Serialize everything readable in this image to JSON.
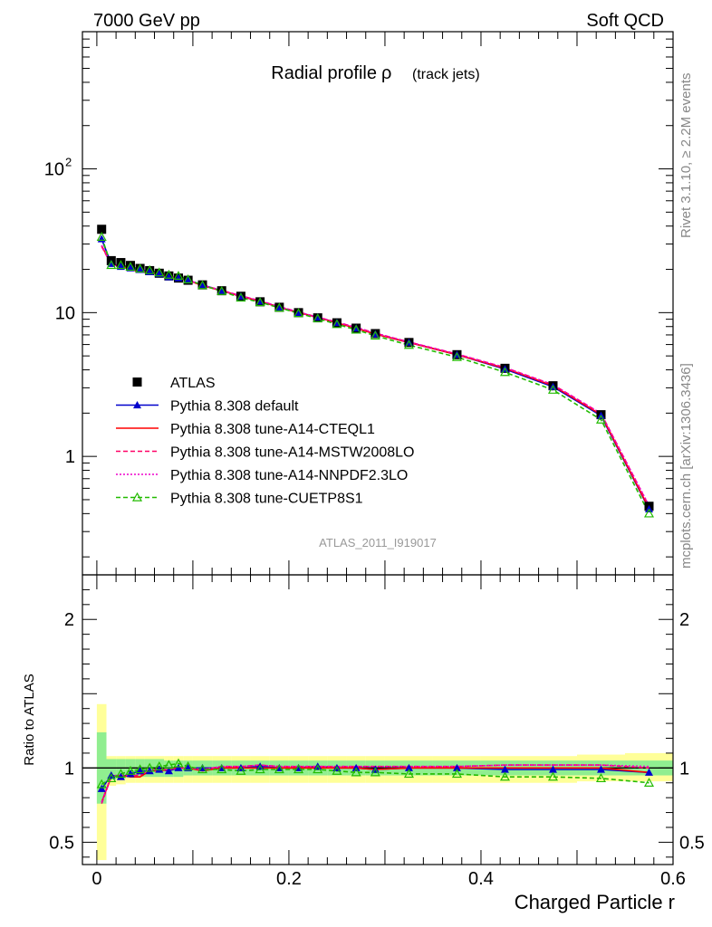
{
  "header": {
    "left": "7000 GeV pp",
    "right": "Soft QCD"
  },
  "side_text": {
    "rivet": "Rivet 3.1.10, ≥ 2.2M events",
    "mcplots": "mcplots.cern.ch [arXiv:1306.3436]"
  },
  "plot_title": {
    "main": "Radial profile",
    "symbol": "ρ",
    "suffix": "(track jets)"
  },
  "analysis_id": "ATLAS_2011_I919017",
  "chart_data": [
    {
      "type": "line",
      "title": "Radial profile ρ (track jets)",
      "xlabel": "",
      "ylabel": "",
      "yscale": "log",
      "xlim": [
        -0.015,
        0.6
      ],
      "ylim": [
        0.15,
        900
      ],
      "yticks_labeled": [
        {
          "v": 1,
          "label": "1"
        },
        {
          "v": 10,
          "label": "10"
        },
        {
          "v": 100,
          "label": "10",
          "sup": "2"
        }
      ],
      "legend_placement": "center-left",
      "x": [
        0.005,
        0.015,
        0.025,
        0.035,
        0.045,
        0.055,
        0.065,
        0.075,
        0.085,
        0.095,
        0.11,
        0.13,
        0.15,
        0.17,
        0.19,
        0.21,
        0.23,
        0.25,
        0.27,
        0.29,
        0.325,
        0.375,
        0.425,
        0.475,
        0.525,
        0.575
      ],
      "series": [
        {
          "name": "ATLAS",
          "color": "#000000",
          "style": "marker-square",
          "values": [
            38,
            23,
            22.3,
            21.3,
            20.3,
            19.6,
            18.8,
            18,
            17.4,
            16.8,
            15.6,
            14.2,
            13,
            11.9,
            10.9,
            10,
            9.2,
            8.5,
            7.8,
            7.15,
            6.2,
            5.1,
            4.1,
            3.1,
            1.95,
            0.45
          ]
        },
        {
          "name": "Pythia 8.308 default",
          "color": "#0000cc",
          "style": "solid-triangle",
          "values": [
            32.5,
            21.9,
            20.9,
            20.4,
            19.9,
            19.2,
            18.6,
            17.7,
            17.4,
            16.8,
            15.6,
            14.2,
            13,
            12,
            10.9,
            10,
            9.3,
            8.5,
            7.8,
            7.1,
            6.2,
            5.1,
            4.05,
            3.05,
            1.92,
            0.43
          ]
        },
        {
          "name": "Pythia 8.308 tune-A14-CTEQL1",
          "color": "#ff0000",
          "style": "solid",
          "values": [
            29.2,
            21.7,
            21.1,
            20.1,
            19.1,
            19.1,
            18.5,
            17.8,
            17.4,
            16.8,
            15.4,
            14.2,
            13,
            12,
            10.9,
            10,
            9.25,
            8.5,
            7.8,
            7.1,
            6.2,
            5.1,
            4.1,
            3.1,
            1.95,
            0.435
          ]
        },
        {
          "name": "Pythia 8.308 tune-A14-MSTW2008LO",
          "color": "#ff0066",
          "style": "dashed",
          "values": [
            28.9,
            21.6,
            21.1,
            20.2,
            19.3,
            19.3,
            18.6,
            17.8,
            17.4,
            16.8,
            15.5,
            14.3,
            13.1,
            12.1,
            11,
            10.1,
            9.3,
            8.6,
            7.9,
            7.2,
            6.25,
            5.15,
            4.15,
            3.15,
            1.99,
            0.45
          ]
        },
        {
          "name": "Pythia 8.308 tune-A14-NNPDF2.3LO",
          "color": "#ee00cc",
          "style": "dotted",
          "values": [
            29.4,
            21.8,
            21.2,
            20.3,
            19.4,
            19.3,
            18.7,
            17.9,
            17.5,
            16.9,
            15.5,
            14.3,
            13.1,
            12.1,
            11,
            10.1,
            9.3,
            8.6,
            7.9,
            7.2,
            6.25,
            5.15,
            4.15,
            3.15,
            1.99,
            0.455
          ]
        },
        {
          "name": "Pythia 8.308 tune-CUETP8S1",
          "color": "#22bb00",
          "style": "dashed-open-triangle",
          "values": [
            33.6,
            21.4,
            21.4,
            20.8,
            20.2,
            19.7,
            19,
            18.3,
            18,
            17,
            15.5,
            14.1,
            12.7,
            11.8,
            10.8,
            9.9,
            9.1,
            8.3,
            7.6,
            6.9,
            5.95,
            4.9,
            3.85,
            2.9,
            1.8,
            0.4
          ]
        }
      ]
    },
    {
      "type": "line",
      "title": "",
      "xlabel": "Charged Particle r",
      "ylabel": "Ratio to ATLAS",
      "xlim": [
        -0.015,
        0.6
      ],
      "ylim": [
        0.35,
        2.3
      ],
      "yticks_labeled": [
        {
          "v": 0.5,
          "label": "0.5"
        },
        {
          "v": 1,
          "label": "1"
        },
        {
          "v": 2,
          "label": "2"
        }
      ],
      "xticks_labeled": [
        {
          "v": 0,
          "label": "0"
        },
        {
          "v": 0.2,
          "label": "0.2"
        },
        {
          "v": 0.4,
          "label": "0.4"
        },
        {
          "v": 0.6,
          "label": "0.6"
        }
      ],
      "reference_line": 1,
      "bands": {
        "x_edges": [
          0,
          0.01,
          0.02,
          0.03,
          0.04,
          0.05,
          0.06,
          0.07,
          0.08,
          0.09,
          0.1,
          0.12,
          0.14,
          0.16,
          0.18,
          0.2,
          0.22,
          0.24,
          0.26,
          0.28,
          0.3,
          0.35,
          0.4,
          0.45,
          0.5,
          0.55,
          0.6
        ],
        "inner": {
          "color": "#90ee90",
          "lo": [
            0.76,
            0.92,
            0.93,
            0.94,
            0.94,
            0.94,
            0.94,
            0.94,
            0.94,
            0.95,
            0.95,
            0.95,
            0.95,
            0.95,
            0.95,
            0.95,
            0.95,
            0.95,
            0.95,
            0.95,
            0.95,
            0.95,
            0.95,
            0.95,
            0.95,
            0.95
          ],
          "hi": [
            1.24,
            1.06,
            1.06,
            1.06,
            1.06,
            1.06,
            1.06,
            1.05,
            1.05,
            1.05,
            1.05,
            1.05,
            1.05,
            1.05,
            1.05,
            1.05,
            1.05,
            1.05,
            1.05,
            1.05,
            1.05,
            1.05,
            1.05,
            1.05,
            1.05,
            1.05
          ]
        },
        "outer": {
          "color": "#ffff99",
          "lo": [
            0.38,
            0.88,
            0.89,
            0.9,
            0.9,
            0.9,
            0.9,
            0.9,
            0.9,
            0.9,
            0.9,
            0.9,
            0.9,
            0.9,
            0.9,
            0.9,
            0.9,
            0.9,
            0.9,
            0.9,
            0.9,
            0.9,
            0.9,
            0.9,
            0.91,
            0.91
          ],
          "hi": [
            1.43,
            1.08,
            1.08,
            1.08,
            1.08,
            1.08,
            1.08,
            1.08,
            1.08,
            1.08,
            1.08,
            1.08,
            1.08,
            1.08,
            1.08,
            1.08,
            1.08,
            1.08,
            1.08,
            1.08,
            1.08,
            1.08,
            1.08,
            1.08,
            1.09,
            1.1
          ]
        }
      },
      "x": [
        0.005,
        0.015,
        0.025,
        0.035,
        0.045,
        0.055,
        0.065,
        0.075,
        0.085,
        0.095,
        0.11,
        0.13,
        0.15,
        0.17,
        0.19,
        0.21,
        0.23,
        0.25,
        0.27,
        0.29,
        0.325,
        0.375,
        0.425,
        0.475,
        0.525,
        0.575
      ],
      "series": [
        {
          "name": "Pythia 8.308 default",
          "color": "#0000cc",
          "style": "solid-triangle",
          "values": [
            0.86,
            0.95,
            0.94,
            0.96,
            0.98,
            0.98,
            0.99,
            0.98,
            1.0,
            1.0,
            1.0,
            1.0,
            1.0,
            1.01,
            1.0,
            1.0,
            1.01,
            1.0,
            1.0,
            0.99,
            1.0,
            1.0,
            0.99,
            0.99,
            0.99,
            0.97
          ]
        },
        {
          "name": "Pythia 8.308 tune-A14-CTEQL1",
          "color": "#ff0000",
          "style": "solid",
          "values": [
            0.77,
            0.94,
            0.95,
            0.94,
            0.94,
            0.98,
            0.98,
            0.99,
            1.0,
            1.0,
            0.98,
            1.0,
            1.0,
            1.0,
            1.0,
            1.0,
            1.0,
            1.0,
            1.0,
            0.99,
            1.0,
            1.0,
            1.0,
            1.0,
            1.0,
            0.97
          ]
        },
        {
          "name": "Pythia 8.308 tune-A14-MSTW2008LO",
          "color": "#ff0066",
          "style": "dashed",
          "values": [
            0.76,
            0.94,
            0.95,
            0.95,
            0.95,
            0.99,
            0.99,
            0.99,
            1.0,
            1.0,
            0.99,
            1.01,
            1.01,
            1.02,
            1.01,
            1.01,
            1.01,
            1.01,
            1.01,
            1.01,
            1.01,
            1.01,
            1.02,
            1.02,
            1.02,
            1.0
          ]
        },
        {
          "name": "Pythia 8.308 tune-A14-NNPDF2.3LO",
          "color": "#ee00cc",
          "style": "dotted",
          "values": [
            0.77,
            0.95,
            0.95,
            0.95,
            0.96,
            0.98,
            0.99,
            0.99,
            1.0,
            1.0,
            0.99,
            1.01,
            1.01,
            1.02,
            1.01,
            1.01,
            1.01,
            1.01,
            1.01,
            1.01,
            1.01,
            1.01,
            1.02,
            1.02,
            1.02,
            1.01
          ]
        },
        {
          "name": "Pythia 8.308 tune-CUETP8S1",
          "color": "#22bb00",
          "style": "dashed-open-triangle",
          "values": [
            0.89,
            0.93,
            0.96,
            0.98,
            0.99,
            1.0,
            1.01,
            1.02,
            1.03,
            1.01,
            0.99,
            0.99,
            0.98,
            0.99,
            0.99,
            0.99,
            0.99,
            0.98,
            0.97,
            0.97,
            0.96,
            0.96,
            0.94,
            0.94,
            0.93,
            0.9
          ]
        }
      ]
    }
  ]
}
